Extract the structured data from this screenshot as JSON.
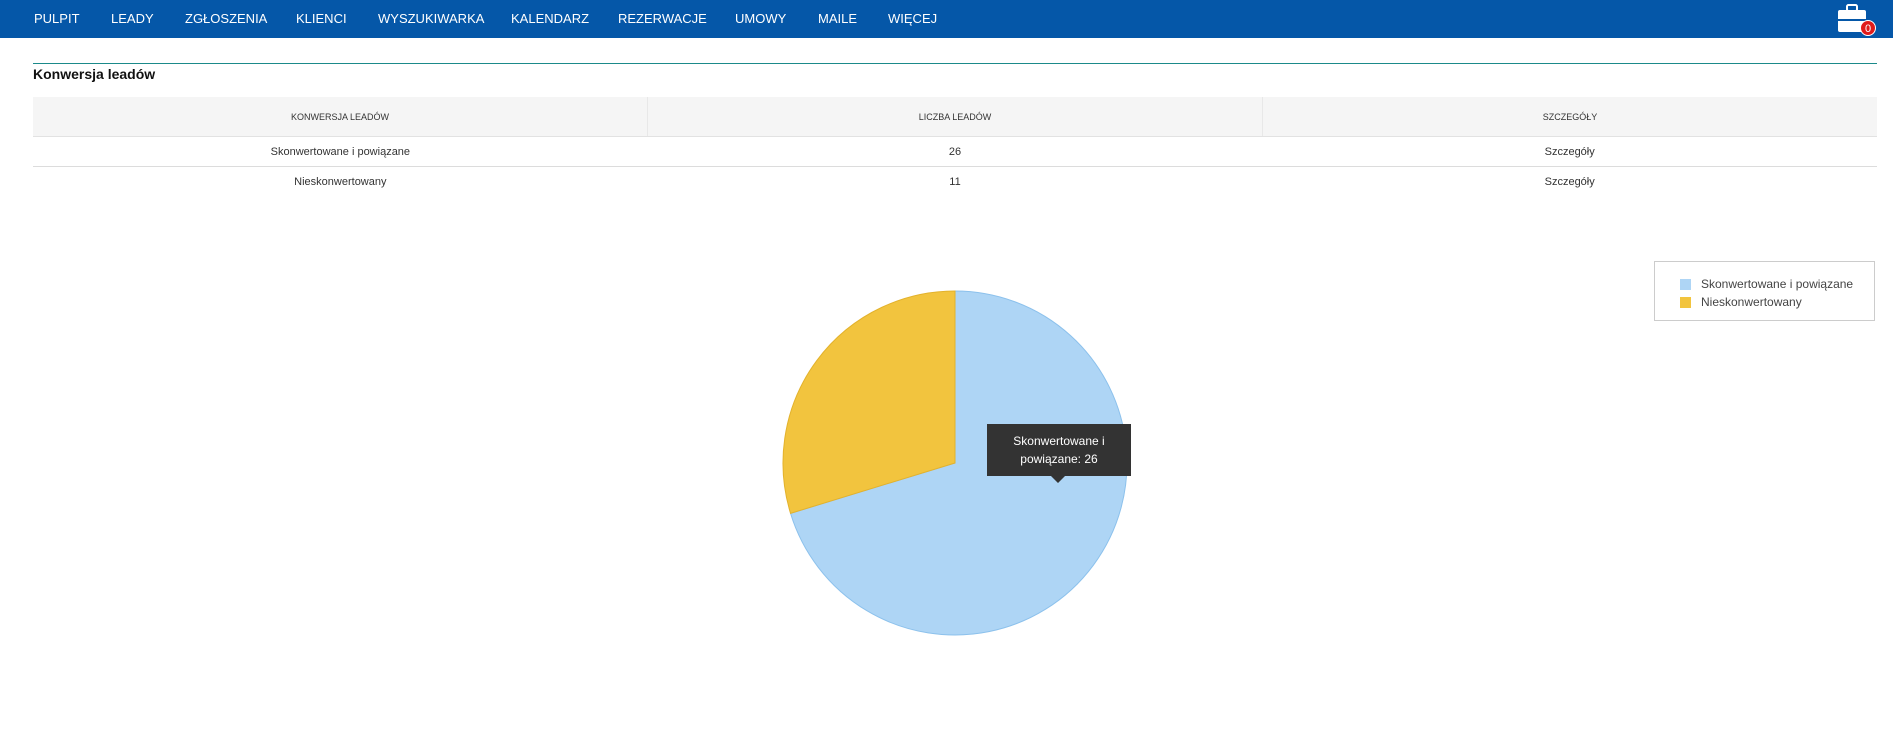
{
  "nav": {
    "items": [
      "PULPIT",
      "LEADY",
      "ZGŁOSZENIA",
      "KLIENCI",
      "WYSZUKIWARKA",
      "KALENDARZ",
      "REZERWACJE",
      "UMOWY",
      "MAILE",
      "WIĘCEJ"
    ],
    "briefcase_icon": "briefcase-icon",
    "badge_count": "0",
    "bar_color": "#0557a8"
  },
  "section": {
    "title": "Konwersja leadów"
  },
  "table": {
    "headers": [
      "KONWERSJA LEADÓW",
      "LICZBA LEADÓW",
      "SZCZEGÓŁY"
    ],
    "rows": [
      [
        "Skonwertowane i powiązane",
        "26",
        "Szczegóły"
      ],
      [
        "Nieskonwertowany",
        "11",
        "Szczegóły"
      ]
    ]
  },
  "chart_data": {
    "type": "pie",
    "slices": [
      {
        "label": "Skonwertowane i powiązane",
        "value": 26,
        "color": "#aed5f5"
      },
      {
        "label": "Nieskonwertowany",
        "value": 11,
        "color": "#f2c43e"
      }
    ],
    "legend_position": "top-right",
    "tooltip": {
      "lines": [
        "Skonwertowane i",
        "powiązane: 26"
      ]
    }
  }
}
